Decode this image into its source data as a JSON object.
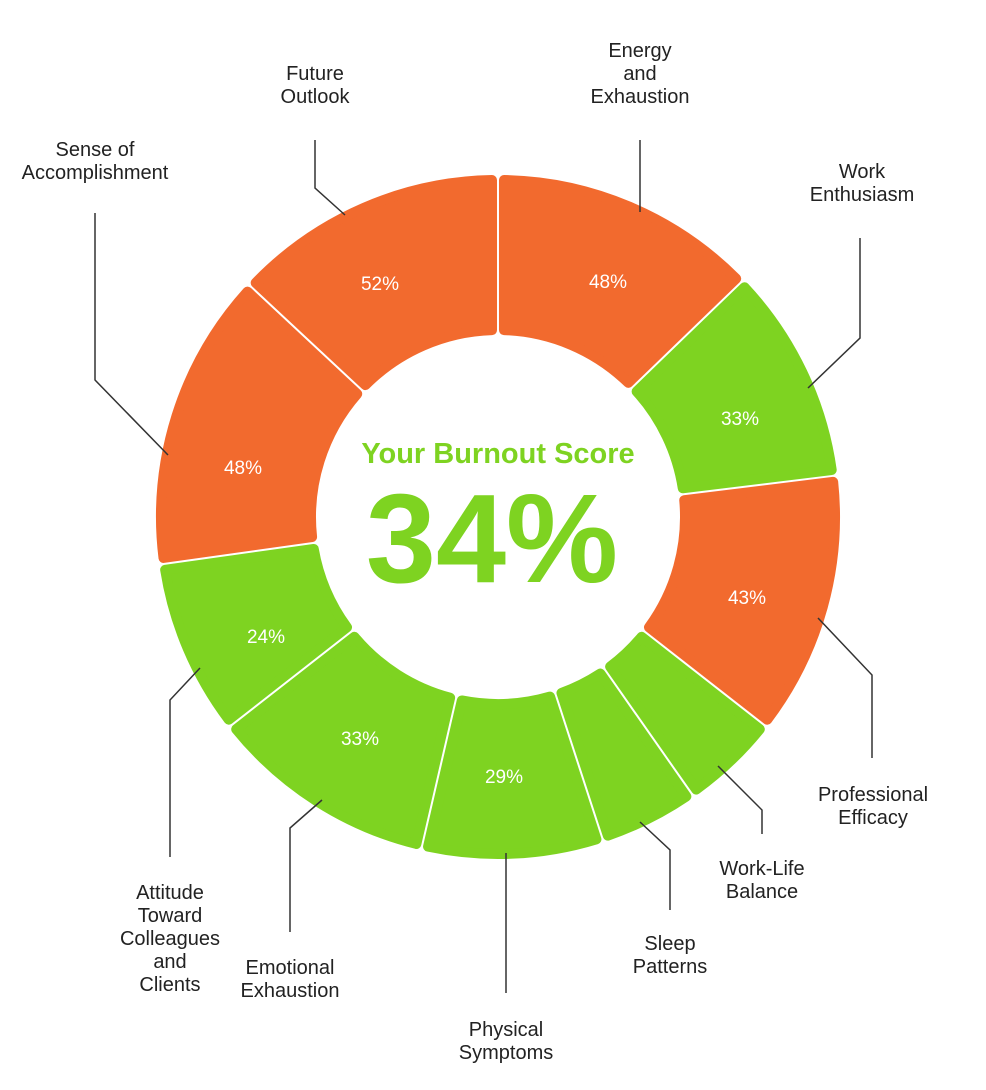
{
  "chart_data": {
    "type": "pie",
    "variant": "donut",
    "center_title": "Your Burnout Score",
    "center_value": "34%",
    "slices": [
      {
        "category": "Energy and Exhaustion",
        "lines": [
          "Energy",
          "and",
          "Exhaustion"
        ],
        "value": 48,
        "label": "48%",
        "status": "high"
      },
      {
        "category": "Work Enthusiasm",
        "lines": [
          "Work",
          "Enthusiasm"
        ],
        "value": 33,
        "label": "33%",
        "status": "low"
      },
      {
        "category": "Professional Efficacy",
        "lines": [
          "Professional",
          "Efficacy"
        ],
        "value": 43,
        "label": "43%",
        "status": "high"
      },
      {
        "category": "Work-Life Balance",
        "lines": [
          "Work-Life",
          "Balance"
        ],
        "value": null,
        "label": "",
        "status": "low"
      },
      {
        "category": "Sleep Patterns",
        "lines": [
          "Sleep",
          "Patterns"
        ],
        "value": null,
        "label": "",
        "status": "low"
      },
      {
        "category": "Physical Symptoms",
        "lines": [
          "Physical",
          "Symptoms"
        ],
        "value": 29,
        "label": "29%",
        "status": "low"
      },
      {
        "category": "Emotional Exhaustion",
        "lines": [
          "Emotional",
          "Exhaustion"
        ],
        "value": 33,
        "label": "33%",
        "status": "low"
      },
      {
        "category": "Attitude Toward Colleagues and Clients",
        "lines": [
          "Attitude",
          "Toward",
          "Colleagues",
          "and",
          "Clients"
        ],
        "value": 24,
        "label": "24%",
        "status": "low"
      },
      {
        "category": "Sense of Accomplishment",
        "lines": [
          "Sense of",
          "Accomplishment"
        ],
        "value": 48,
        "label": "48%",
        "status": "high"
      },
      {
        "category": "Future Outlook",
        "lines": [
          "Future",
          "Outlook"
        ],
        "value": 52,
        "label": "52%",
        "status": "high"
      }
    ],
    "colors": {
      "high": "#f26a2e",
      "low": "#7ed321",
      "label_text": "#ffffff",
      "center_text": "#7ed321"
    }
  }
}
